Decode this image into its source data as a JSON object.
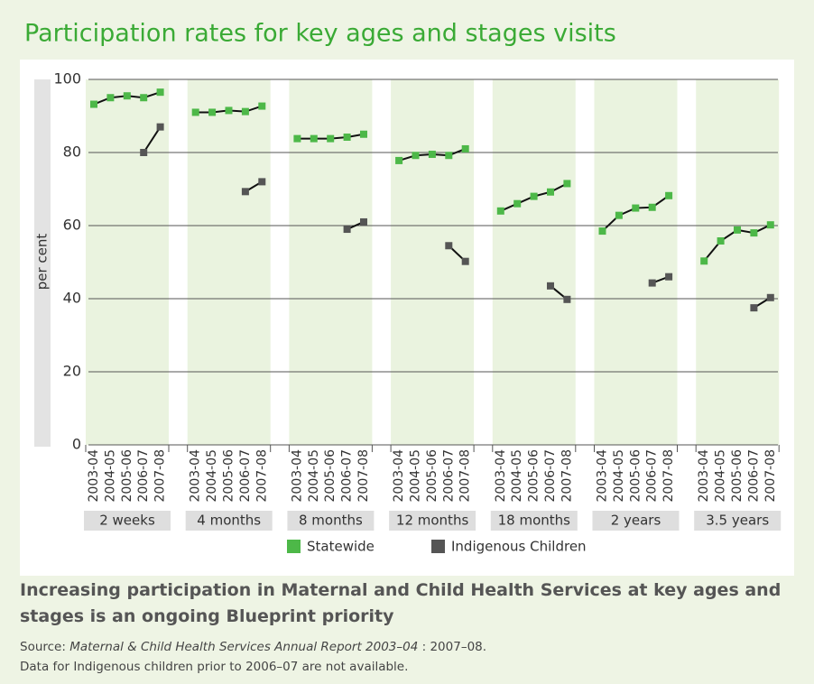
{
  "chart_data": {
    "type": "line",
    "title": "Participation rates for key ages and stages visits",
    "y_label": "per cent",
    "categories": [
      "2003-04",
      "2004-05",
      "2005-06",
      "2006-07",
      "2007-08"
    ],
    "groups": [
      "2 weeks",
      "4 months",
      "8 months",
      "12 months",
      "18 months",
      "2 years",
      "3.5 years"
    ],
    "series": [
      {
        "name": "Statewide",
        "color": "#4db848",
        "values": [
          [
            93.2,
            95,
            95.5,
            95,
            96.5
          ],
          [
            91,
            91,
            91.5,
            91.2,
            92.7
          ],
          [
            83.8,
            83.8,
            83.8,
            84.2,
            85
          ],
          [
            77.8,
            79.2,
            79.5,
            79.2,
            81
          ],
          [
            64,
            66,
            68,
            69.2,
            71.5
          ],
          [
            58.5,
            62.8,
            64.8,
            65,
            68.2
          ],
          [
            50.3,
            55.8,
            58.8,
            58,
            60.2
          ]
        ]
      },
      {
        "name": "Indigenous Children",
        "color": "#555555",
        "values": [
          [
            null,
            null,
            null,
            80,
            87
          ],
          [
            null,
            null,
            null,
            69.3,
            72
          ],
          [
            null,
            null,
            null,
            59,
            61
          ],
          [
            null,
            null,
            null,
            54.5,
            50.2
          ],
          [
            null,
            null,
            null,
            43.5,
            39.8
          ],
          [
            null,
            null,
            null,
            44.3,
            46
          ],
          [
            null,
            null,
            null,
            37.5,
            40.3
          ]
        ]
      }
    ],
    "ylim": [
      0,
      100
    ],
    "yticks": [
      0,
      20,
      40,
      60,
      80,
      100
    ],
    "grid": true,
    "caption": "Increasing participation in Maternal and Child Health Services at key ages and stages is an ongoing Blueprint priority",
    "source": [
      "Source:",
      "Maternal & Child Health Services Annual Report 2003–04",
      ": 2007–08."
    ],
    "note": "Data for Indigenous children prior to 2006–07 are not available."
  }
}
